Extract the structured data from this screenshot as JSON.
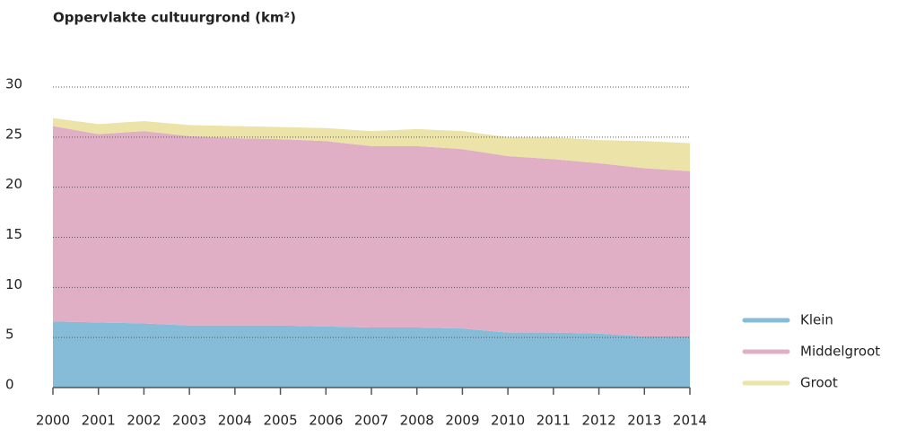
{
  "chart_data": {
    "type": "stacked_area",
    "title": "Oppervlakte cultuurgrond (km²)",
    "categories": [
      "2000",
      "2001",
      "2002",
      "2003",
      "2004",
      "2005",
      "2006",
      "2007",
      "2008",
      "2009",
      "2010",
      "2011",
      "2012",
      "2013",
      "2014"
    ],
    "series": [
      {
        "name": "Klein",
        "color": "#86bcd8",
        "values": [
          6.6,
          6.5,
          6.4,
          6.2,
          6.2,
          6.2,
          6.1,
          6.0,
          6.0,
          5.9,
          5.5,
          5.5,
          5.4,
          5.1,
          5.1
        ]
      },
      {
        "name": "Middelgroot",
        "color": "#e0afc6",
        "values": [
          19.5,
          18.8,
          19.2,
          18.9,
          18.7,
          18.6,
          18.5,
          18.1,
          18.1,
          17.9,
          17.6,
          17.3,
          17.0,
          16.8,
          16.5
        ]
      },
      {
        "name": "Groot",
        "color": "#ebe3a7",
        "values": [
          0.8,
          1.0,
          1.0,
          1.1,
          1.2,
          1.2,
          1.3,
          1.5,
          1.7,
          1.8,
          1.9,
          2.2,
          2.3,
          2.7,
          2.8
        ]
      }
    ],
    "ylim": [
      0,
      30
    ],
    "yticks": [
      0,
      5,
      10,
      15,
      20,
      25,
      30
    ],
    "grid": true,
    "legend": "right"
  }
}
